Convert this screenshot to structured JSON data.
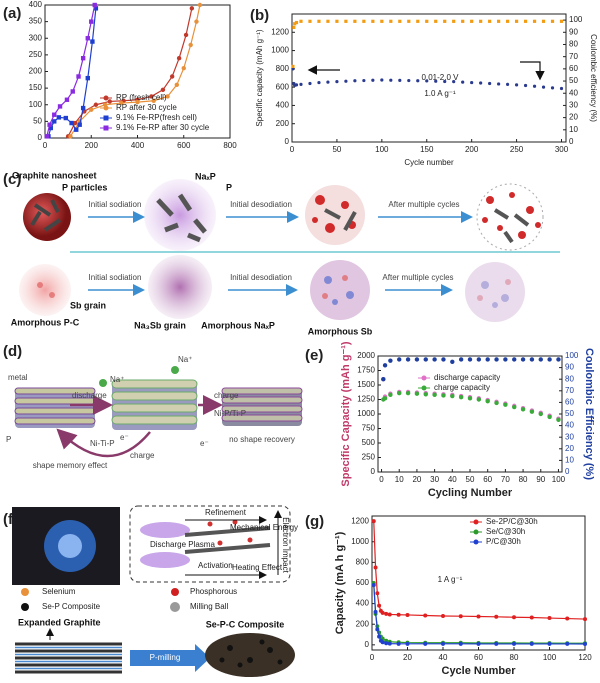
{
  "chart_data": [
    {
      "type": "line",
      "label": "(a)",
      "xlim": [
        0,
        800
      ],
      "ylim": [
        0,
        400
      ],
      "xticks": [
        0,
        200,
        400,
        600,
        800
      ],
      "yticks": [
        0,
        50,
        100,
        150,
        200,
        250,
        300,
        350,
        400
      ],
      "lines": true,
      "legend": "lower right",
      "series": [
        {
          "name": "RP (fresh cell)",
          "color": "#c0392b",
          "marker": "circle",
          "x": [
            100,
            130,
            170,
            220,
            280,
            340,
            400,
            460,
            510,
            550,
            580,
            610,
            635
          ],
          "values": [
            5,
            45,
            80,
            100,
            110,
            112,
            115,
            125,
            145,
            185,
            240,
            310,
            390
          ]
        },
        {
          "name": "RP after 30 cycle",
          "color": "#e8913a",
          "marker": "circle",
          "x": [
            110,
            150,
            200,
            260,
            330,
            400,
            470,
            530,
            570,
            600,
            630,
            655,
            670
          ],
          "values": [
            5,
            50,
            85,
            100,
            105,
            108,
            112,
            125,
            160,
            210,
            280,
            350,
            400
          ]
        },
        {
          "name": "9.1% Fe-RP(fresh cell)",
          "color": "#1f3fd1",
          "marker": "square",
          "x": [
            15,
            25,
            40,
            60,
            90,
            115,
            135,
            150,
            165,
            185,
            205,
            220
          ],
          "values": [
            5,
            30,
            50,
            62,
            60,
            45,
            25,
            40,
            90,
            180,
            290,
            390
          ]
        },
        {
          "name": "9.1% Fe-RP after 30 cycle",
          "color": "#8a2be2",
          "marker": "square",
          "x": [
            8,
            20,
            40,
            65,
            95,
            120,
            145,
            165,
            185,
            200,
            215
          ],
          "values": [
            5,
            40,
            70,
            95,
            115,
            140,
            185,
            240,
            300,
            350,
            400
          ]
        }
      ]
    },
    {
      "type": "scatter",
      "label": "(b)",
      "xlabel": "Cycle number",
      "ylabel": "Specific capacity (mAh g⁻¹)",
      "y2label": "Coulombic efficiency (%)",
      "xlim": [
        0,
        305
      ],
      "ylim": [
        0,
        1400
      ],
      "y2lim": [
        0,
        105
      ],
      "xticks": [
        0,
        50,
        100,
        150,
        200,
        250,
        300
      ],
      "yticks": [
        0,
        200,
        400,
        600,
        800,
        1000,
        1200
      ],
      "y2ticks": [
        0,
        10,
        20,
        30,
        40,
        50,
        60,
        70,
        80,
        90,
        100
      ],
      "annotations": [
        "0.01-2.0 V",
        "1.0 A g⁻¹"
      ],
      "x": [
        1,
        2,
        3,
        5,
        10,
        20,
        30,
        40,
        50,
        60,
        70,
        80,
        90,
        100,
        110,
        120,
        130,
        140,
        150,
        160,
        170,
        180,
        190,
        200,
        210,
        220,
        230,
        240,
        250,
        260,
        270,
        280,
        290,
        300
      ],
      "series": [
        {
          "color": "#2a3a8f",
          "marker": "circle",
          "values": [
            800,
            640,
            620,
            625,
            630,
            640,
            650,
            655,
            660,
            665,
            670,
            672,
            675,
            678,
            676,
            674,
            672,
            670,
            668,
            665,
            662,
            660,
            655,
            650,
            645,
            640,
            635,
            630,
            625,
            618,
            610,
            600,
            592,
            585
          ]
        },
        {
          "color": "#f39c12",
          "marker": "square",
          "axis": "y2",
          "values": [
            62,
            94,
            97,
            98,
            99,
            99,
            99,
            99,
            99,
            99,
            99,
            99,
            99,
            99,
            99,
            99,
            99,
            99,
            99,
            99,
            99,
            99,
            99,
            99,
            99,
            99,
            99,
            99,
            99,
            99,
            99,
            99,
            99,
            99
          ]
        }
      ]
    },
    {
      "type": "scatter",
      "label": "(e)",
      "xlabel": "Cycling Number",
      "ylabel": "Specific Capacity (mAh g⁻¹)",
      "y2label": "Coulombic Efficiency (%)",
      "xlim": [
        -2,
        102
      ],
      "ylim": [
        0,
        2000
      ],
      "y2lim": [
        0,
        100
      ],
      "xticks": [
        0,
        10,
        20,
        30,
        40,
        50,
        60,
        70,
        80,
        90,
        100
      ],
      "yticks": [
        0,
        250,
        500,
        750,
        1000,
        1250,
        1500,
        1750,
        2000
      ],
      "y2ticks": [
        0,
        10,
        20,
        30,
        40,
        50,
        60,
        70,
        80,
        90,
        100
      ],
      "legend": "upper center",
      "x": [
        1,
        2,
        5,
        10,
        15,
        20,
        25,
        30,
        35,
        40,
        45,
        50,
        55,
        60,
        65,
        70,
        75,
        80,
        85,
        90,
        95,
        100
      ],
      "series": [
        {
          "name": "discharge capacity",
          "color": "#e070c8",
          "marker": "circle",
          "values": [
            1600,
            1300,
            1350,
            1380,
            1380,
            1370,
            1360,
            1350,
            1340,
            1330,
            1310,
            1290,
            1270,
            1240,
            1210,
            1180,
            1140,
            1100,
            1060,
            1020,
            970,
            920
          ]
        },
        {
          "name": "charge capacity",
          "color": "#3aaa3a",
          "marker": "circle",
          "values": [
            1250,
            1270,
            1330,
            1360,
            1360,
            1350,
            1340,
            1330,
            1320,
            1310,
            1290,
            1270,
            1250,
            1220,
            1190,
            1160,
            1120,
            1080,
            1040,
            1000,
            950,
            900
          ]
        },
        {
          "color": "#1f3fa0",
          "marker": "circle",
          "axis": "y2",
          "values": [
            80,
            92,
            96,
            97,
            97,
            97,
            97,
            97,
            97,
            95,
            97,
            97,
            97,
            97,
            97,
            97,
            97,
            97,
            97,
            97,
            97,
            97
          ]
        }
      ]
    },
    {
      "type": "line",
      "label": "(g)",
      "xlabel": "Cycle Number",
      "ylabel": "Capacity (mA h g⁻¹)",
      "xlim": [
        0,
        120
      ],
      "ylim": [
        -50,
        1250
      ],
      "xticks": [
        0,
        20,
        40,
        60,
        80,
        100,
        120
      ],
      "yticks": [
        0,
        200,
        400,
        600,
        800,
        1000,
        1200
      ],
      "lines": true,
      "legend": "upper right",
      "annotations": [
        "1 A g⁻¹"
      ],
      "x": [
        1,
        2,
        3,
        4,
        5,
        6,
        8,
        10,
        15,
        20,
        30,
        40,
        50,
        60,
        70,
        80,
        90,
        100,
        110,
        120
      ],
      "series": [
        {
          "name": "Se-2P/C@30h",
          "color": "#e02020",
          "marker": "circle",
          "values": [
            1200,
            750,
            500,
            380,
            330,
            310,
            300,
            295,
            292,
            290,
            285,
            280,
            278,
            275,
            272,
            268,
            265,
            260,
            255,
            250
          ]
        },
        {
          "name": "Se/C@30h",
          "color": "#2a9a2a",
          "marker": "circle",
          "values": [
            600,
            300,
            180,
            120,
            80,
            60,
            40,
            30,
            25,
            22,
            20,
            20,
            20,
            18,
            18,
            18,
            17,
            17,
            16,
            16
          ]
        },
        {
          "name": "P/C@30h",
          "color": "#2040d0",
          "marker": "circle",
          "values": [
            580,
            320,
            150,
            80,
            40,
            25,
            15,
            12,
            10,
            10,
            10,
            10,
            10,
            9,
            9,
            9,
            9,
            9,
            9,
            8
          ]
        }
      ]
    }
  ],
  "diagrams": {
    "c": {
      "label": "(c)",
      "row1": [
        "Graphite nanosheet",
        "P particles",
        "NaₓP",
        "P",
        "Initial sodiation",
        "Initial desodiation",
        "After multiple cycles"
      ],
      "row2": [
        "Amorphous P-C",
        "Sb grain",
        "Na₃Sb grain",
        "Amorphous NaₓP",
        "Amorphous Sb",
        "Initial sodiation",
        "Initial desodiation",
        "After multiple cycles"
      ]
    },
    "d": {
      "label": "(d)",
      "texts": [
        "metal",
        "P",
        "Na⁺",
        "Na⁺",
        "discharge",
        "charge",
        "Ni-P/Ti-P",
        "e⁻",
        "Ni-Ti-P",
        "charge",
        "e⁻",
        "shape memory effect",
        "no shape recovery"
      ]
    },
    "f": {
      "label": "(f)",
      "inset": [
        "Refinement",
        "Mechanical Energy",
        "Discharge Plasma",
        "Activation",
        "Heating Effect",
        "Electron Impact"
      ],
      "legend": [
        "Selenium",
        "Phosphorous",
        "Se-P Composite",
        "Milling Ball"
      ],
      "texts": [
        "Expanded Graphite",
        "Se-P-C Composite",
        "P-milling"
      ]
    }
  }
}
